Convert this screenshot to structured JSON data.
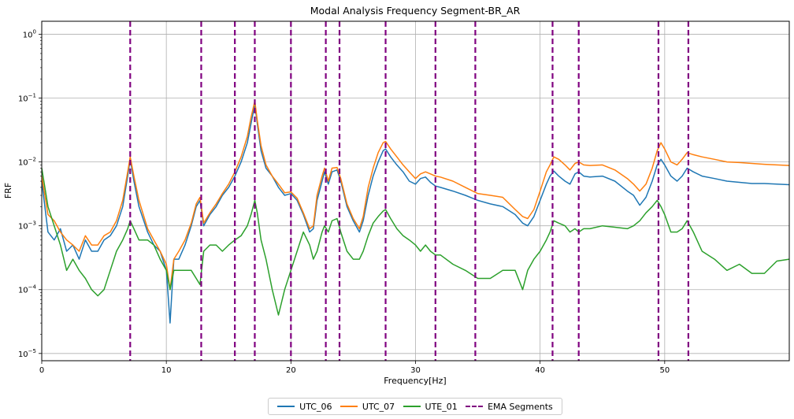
{
  "chart_data": {
    "type": "line",
    "title": "Modal Analysis Frequency Segment-BR_AR",
    "xlabel": "Frequency[Hz]",
    "ylabel": "FRF",
    "xscale": "linear",
    "yscale": "log",
    "xlim": [
      0,
      60
    ],
    "ylim": [
      7.7e-06,
      1.6
    ],
    "grid": true,
    "legend_position": "bottom-center",
    "xticks": [
      0,
      10,
      20,
      30,
      40,
      50
    ],
    "xtick_labels": [
      "0",
      "10",
      "20",
      "30",
      "40",
      "50"
    ],
    "yticks": [
      1e-05,
      0.0001,
      0.001,
      0.01,
      0.1,
      1
    ],
    "ytick_labels": [
      {
        "base": "10",
        "exp": "−5"
      },
      {
        "base": "10",
        "exp": "−4"
      },
      {
        "base": "10",
        "exp": "−3"
      },
      {
        "base": "10",
        "exp": "−2"
      },
      {
        "base": "10",
        "exp": "−1"
      },
      {
        "base": "10",
        "exp": "0"
      }
    ],
    "series": [
      {
        "name": "UTC_06",
        "color": "#1f77b4",
        "x": [
          0,
          0.5,
          1,
          1.5,
          2,
          2.5,
          3,
          3.5,
          4,
          4.5,
          5,
          5.5,
          6,
          6.5,
          6.9,
          7.1,
          7.4,
          7.8,
          8.5,
          9,
          9.5,
          10,
          10.3,
          10.6,
          11,
          11.5,
          12,
          12.4,
          12.7,
          13,
          13.5,
          14,
          14.5,
          15,
          15.5,
          16,
          16.5,
          16.8,
          17.1,
          17.3,
          17.6,
          18,
          18.5,
          19,
          19.5,
          20,
          20.5,
          21,
          21.5,
          21.8,
          22.1,
          22.5,
          22.7,
          23,
          23.3,
          23.7,
          24,
          24.5,
          25,
          25.5,
          25.8,
          26.2,
          26.6,
          27,
          27.4,
          27.6,
          28,
          28.5,
          29,
          29.5,
          30,
          30.4,
          30.8,
          31.2,
          31.6,
          32,
          33,
          34,
          35,
          36,
          37,
          38,
          38.6,
          39,
          39.5,
          40,
          40.5,
          40.8,
          41.1,
          41.5,
          42,
          42.4,
          42.8,
          43.1,
          43.5,
          44,
          45,
          46,
          47,
          47.5,
          48,
          48.5,
          49,
          49.4,
          49.7,
          50,
          50.5,
          51,
          51.4,
          51.8,
          52.3,
          53,
          54,
          55,
          56,
          57,
          58,
          59,
          60
        ],
        "y": [
          0.005,
          0.0008,
          0.0006,
          0.0009,
          0.0004,
          0.0005,
          0.0003,
          0.0006,
          0.0004,
          0.0004,
          0.0006,
          0.0007,
          0.001,
          0.002,
          0.006,
          0.011,
          0.005,
          0.002,
          0.0008,
          0.0005,
          0.0004,
          0.0002,
          3e-05,
          0.0003,
          0.0003,
          0.0005,
          0.001,
          0.002,
          0.0025,
          0.001,
          0.0015,
          0.002,
          0.003,
          0.004,
          0.006,
          0.01,
          0.02,
          0.04,
          0.08,
          0.04,
          0.015,
          0.008,
          0.006,
          0.004,
          0.003,
          0.0032,
          0.0025,
          0.0015,
          0.0008,
          0.0009,
          0.0025,
          0.005,
          0.007,
          0.0045,
          0.007,
          0.0075,
          0.005,
          0.002,
          0.0012,
          0.0008,
          0.0012,
          0.003,
          0.006,
          0.01,
          0.015,
          0.016,
          0.012,
          0.009,
          0.007,
          0.005,
          0.0045,
          0.0055,
          0.0058,
          0.0048,
          0.0042,
          0.004,
          0.0035,
          0.003,
          0.0025,
          0.0022,
          0.002,
          0.0015,
          0.0011,
          0.001,
          0.0014,
          0.0025,
          0.0045,
          0.006,
          0.0072,
          0.006,
          0.005,
          0.0045,
          0.0065,
          0.007,
          0.006,
          0.0058,
          0.006,
          0.005,
          0.0035,
          0.003,
          0.0021,
          0.0028,
          0.005,
          0.009,
          0.011,
          0.009,
          0.006,
          0.005,
          0.006,
          0.008,
          0.007,
          0.006,
          0.0055,
          0.005,
          0.0048,
          0.0046,
          0.0046,
          0.0045,
          0.0044
        ]
      },
      {
        "name": "UTC_07",
        "color": "#ff7f0e",
        "x": [
          0,
          0.5,
          1,
          1.5,
          2,
          2.5,
          3,
          3.5,
          4,
          4.5,
          5,
          5.5,
          6,
          6.5,
          6.9,
          7.1,
          7.4,
          7.8,
          8.5,
          9,
          9.5,
          10,
          10.3,
          10.6,
          11,
          11.5,
          12,
          12.4,
          12.7,
          13,
          13.5,
          14,
          14.5,
          15,
          15.5,
          16,
          16.5,
          16.8,
          17.1,
          17.3,
          17.6,
          18,
          18.5,
          19,
          19.5,
          20,
          20.5,
          21,
          21.5,
          21.8,
          22.1,
          22.5,
          22.7,
          23,
          23.3,
          23.7,
          24,
          24.5,
          25,
          25.5,
          25.8,
          26.2,
          26.6,
          27,
          27.4,
          27.6,
          28,
          28.5,
          29,
          29.5,
          30,
          30.4,
          30.8,
          31.2,
          31.6,
          32,
          33,
          34,
          35,
          36,
          37,
          38,
          38.6,
          39,
          39.5,
          40,
          40.5,
          40.8,
          41.1,
          41.5,
          42,
          42.4,
          42.8,
          43.1,
          43.5,
          44,
          45,
          46,
          47,
          47.5,
          48,
          48.5,
          49,
          49.4,
          49.7,
          50,
          50.5,
          51,
          51.4,
          51.8,
          52.3,
          53,
          54,
          55,
          56,
          57,
          58,
          59,
          60
        ],
        "y": [
          0.006,
          0.0015,
          0.0012,
          0.0008,
          0.0006,
          0.0005,
          0.0004,
          0.0007,
          0.0005,
          0.0005,
          0.0007,
          0.0008,
          0.0012,
          0.0025,
          0.007,
          0.012,
          0.006,
          0.0025,
          0.0009,
          0.0006,
          0.0004,
          0.00025,
          0.0001,
          0.0003,
          0.0004,
          0.0006,
          0.0011,
          0.0022,
          0.0028,
          0.0011,
          0.0016,
          0.0022,
          0.0032,
          0.0045,
          0.007,
          0.012,
          0.025,
          0.05,
          0.09,
          0.045,
          0.018,
          0.009,
          0.006,
          0.0045,
          0.0033,
          0.0034,
          0.0027,
          0.0016,
          0.0009,
          0.001,
          0.003,
          0.006,
          0.008,
          0.005,
          0.008,
          0.0082,
          0.0055,
          0.0022,
          0.0013,
          0.0009,
          0.0014,
          0.004,
          0.008,
          0.014,
          0.02,
          0.021,
          0.016,
          0.012,
          0.009,
          0.007,
          0.0055,
          0.0065,
          0.007,
          0.0065,
          0.006,
          0.0058,
          0.005,
          0.004,
          0.0032,
          0.003,
          0.0028,
          0.0018,
          0.0014,
          0.0013,
          0.0018,
          0.0035,
          0.007,
          0.009,
          0.012,
          0.011,
          0.009,
          0.0075,
          0.0095,
          0.01,
          0.009,
          0.0088,
          0.009,
          0.0075,
          0.0055,
          0.0045,
          0.0035,
          0.0045,
          0.008,
          0.015,
          0.02,
          0.016,
          0.01,
          0.009,
          0.011,
          0.014,
          0.013,
          0.012,
          0.011,
          0.01,
          0.0098,
          0.0095,
          0.0092,
          0.009,
          0.0088
        ]
      },
      {
        "name": "UTE_01",
        "color": "#2ca02c",
        "x": [
          0,
          0.5,
          1,
          1.5,
          2,
          2.5,
          3,
          3.5,
          4,
          4.5,
          5,
          5.5,
          6,
          6.5,
          6.9,
          7.1,
          7.4,
          7.8,
          8.5,
          9,
          9.5,
          10,
          10.3,
          10.6,
          11,
          11.5,
          12,
          12.4,
          12.7,
          13,
          13.5,
          14,
          14.5,
          15,
          15.5,
          16,
          16.5,
          16.8,
          17.1,
          17.3,
          17.6,
          18,
          18.5,
          19,
          19.5,
          20,
          20.5,
          21,
          21.5,
          21.8,
          22.1,
          22.5,
          22.7,
          23,
          23.3,
          23.7,
          24,
          24.5,
          25,
          25.5,
          25.8,
          26.2,
          26.6,
          27,
          27.4,
          27.6,
          28,
          28.5,
          29,
          29.5,
          30,
          30.4,
          30.8,
          31.2,
          31.6,
          32,
          33,
          34,
          35,
          36,
          37,
          38,
          38.6,
          39,
          39.5,
          40,
          40.5,
          40.8,
          41.1,
          41.5,
          42,
          42.4,
          42.8,
          43.1,
          43.5,
          44,
          45,
          46,
          47,
          47.5,
          48,
          48.5,
          49,
          49.4,
          49.7,
          50,
          50.5,
          51,
          51.4,
          51.8,
          52.3,
          53,
          54,
          55,
          56,
          57,
          58,
          59,
          60
        ],
        "y": [
          0.008,
          0.002,
          0.001,
          0.0005,
          0.0002,
          0.0003,
          0.0002,
          0.00015,
          0.0001,
          8e-05,
          0.0001,
          0.0002,
          0.0004,
          0.0006,
          0.0009,
          0.0012,
          0.0009,
          0.0006,
          0.0006,
          0.0005,
          0.0003,
          0.0002,
          0.0001,
          0.0002,
          0.0002,
          0.0002,
          0.0002,
          0.00015,
          0.00012,
          0.0004,
          0.0005,
          0.0005,
          0.0004,
          0.0005,
          0.0006,
          0.0007,
          0.001,
          0.0015,
          0.0025,
          0.0016,
          0.0006,
          0.0003,
          0.0001,
          4e-05,
          0.0001,
          0.0002,
          0.0004,
          0.0008,
          0.0005,
          0.0003,
          0.0004,
          0.0008,
          0.001,
          0.0008,
          0.0012,
          0.0013,
          0.0008,
          0.0004,
          0.0003,
          0.0003,
          0.0004,
          0.0007,
          0.0011,
          0.0014,
          0.0017,
          0.0018,
          0.0013,
          0.0009,
          0.0007,
          0.0006,
          0.0005,
          0.0004,
          0.0005,
          0.0004,
          0.00035,
          0.00035,
          0.00025,
          0.0002,
          0.00015,
          0.00015,
          0.0002,
          0.0002,
          0.0001,
          0.0002,
          0.0003,
          0.0004,
          0.0006,
          0.0008,
          0.0012,
          0.0011,
          0.001,
          0.0008,
          0.0009,
          0.0008,
          0.0009,
          0.0009,
          0.001,
          0.00095,
          0.0009,
          0.001,
          0.0012,
          0.0016,
          0.002,
          0.0025,
          0.002,
          0.0015,
          0.0008,
          0.0008,
          0.0009,
          0.0012,
          0.0008,
          0.0004,
          0.0003,
          0.0002,
          0.00025,
          0.00018,
          0.00018,
          0.00028,
          0.0003
        ]
      }
    ],
    "vlines": {
      "name": "EMA Segments",
      "color": "#800080",
      "style": "dashed",
      "x": [
        7.1,
        12.8,
        15.5,
        17.1,
        20.0,
        22.8,
        23.9,
        27.6,
        31.6,
        34.8,
        41.0,
        43.1,
        49.5,
        51.9
      ]
    }
  }
}
